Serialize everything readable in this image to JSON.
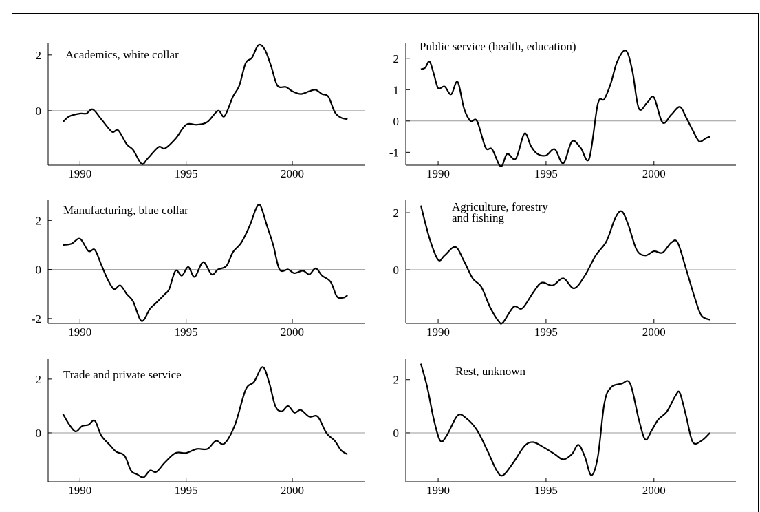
{
  "chart_data": [
    {
      "type": "line",
      "title": "Academics, white collar",
      "xlim": [
        1988.5,
        2003.4
      ],
      "xticks": [
        1990,
        1995,
        2000
      ],
      "ylim": [
        -1.95,
        2.44
      ],
      "yticks": [
        0,
        2
      ],
      "zero_line": true,
      "series": [
        {
          "color": "#000000",
          "x": [
            1989.2,
            1989.5,
            1990,
            1990.3,
            1990.6,
            1991,
            1991.5,
            1991.8,
            1992.2,
            1992.5,
            1992.9,
            1993.2,
            1993.7,
            1994,
            1994.5,
            1995,
            1995.5,
            1996,
            1996.5,
            1996.8,
            1997.2,
            1997.5,
            1997.8,
            1998.1,
            1998.4,
            1998.7,
            1999,
            1999.3,
            1999.7,
            2000,
            2000.4,
            2000.8,
            2001.1,
            2001.4,
            2001.7,
            2002,
            2002.3,
            2002.6
          ],
          "values": [
            -0.4,
            -0.2,
            -0.1,
            -0.1,
            0.05,
            -0.3,
            -0.75,
            -0.7,
            -1.2,
            -1.4,
            -1.9,
            -1.7,
            -1.3,
            -1.35,
            -1.0,
            -0.5,
            -0.5,
            -0.4,
            0.0,
            -0.2,
            0.5,
            0.9,
            1.7,
            1.9,
            2.35,
            2.2,
            1.6,
            0.9,
            0.85,
            0.7,
            0.6,
            0.7,
            0.75,
            0.6,
            0.5,
            -0.05,
            -0.25,
            -0.3
          ]
        }
      ]
    },
    {
      "type": "line",
      "title": "Public service (health, education)",
      "xlim": [
        1988.5,
        2003.8
      ],
      "xticks": [
        1990,
        1995,
        2000
      ],
      "ylim": [
        -1.41,
        2.5
      ],
      "yticks": [
        -1,
        0,
        1,
        2
      ],
      "zero_line": true,
      "series": [
        {
          "color": "#000000",
          "x": [
            1989.2,
            1989.4,
            1989.6,
            1989.8,
            1990,
            1990.3,
            1990.6,
            1990.9,
            1991.2,
            1991.5,
            1991.8,
            1992.2,
            1992.5,
            1992.9,
            1993.2,
            1993.6,
            1994,
            1994.3,
            1994.6,
            1995,
            1995.4,
            1995.8,
            1996.2,
            1996.6,
            1997,
            1997.4,
            1997.7,
            1998,
            1998.3,
            1998.7,
            1999,
            1999.3,
            1999.7,
            2000,
            2000.4,
            2000.8,
            2001.2,
            2001.5,
            2001.8,
            2002.1,
            2002.4,
            2002.6
          ],
          "values": [
            1.65,
            1.7,
            1.9,
            1.5,
            1.05,
            1.1,
            0.85,
            1.25,
            0.4,
            0.0,
            0.0,
            -0.85,
            -0.9,
            -1.45,
            -1.05,
            -1.2,
            -0.4,
            -0.8,
            -1.05,
            -1.1,
            -0.9,
            -1.35,
            -0.65,
            -0.85,
            -1.2,
            0.55,
            0.7,
            1.2,
            1.9,
            2.25,
            1.6,
            0.4,
            0.6,
            0.75,
            -0.05,
            0.2,
            0.45,
            0.1,
            -0.3,
            -0.65,
            -0.55,
            -0.5
          ]
        }
      ]
    },
    {
      "type": "line",
      "title": "Manufacturing, blue collar",
      "xlim": [
        1988.5,
        2003.4
      ],
      "xticks": [
        1990,
        1995,
        2000
      ],
      "ylim": [
        -2.2,
        2.85
      ],
      "yticks": [
        -2,
        0,
        2
      ],
      "zero_line": true,
      "series": [
        {
          "color": "#000000",
          "x": [
            1989.2,
            1989.6,
            1990,
            1990.4,
            1990.7,
            1991,
            1991.3,
            1991.6,
            1991.9,
            1992.2,
            1992.5,
            1992.9,
            1993.3,
            1993.6,
            1994,
            1994.2,
            1994.5,
            1994.8,
            1995.1,
            1995.4,
            1995.8,
            1996.2,
            1996.5,
            1996.9,
            1997.2,
            1997.6,
            1998,
            1998.3,
            1998.5,
            1998.8,
            1999.1,
            1999.4,
            1999.8,
            2000.1,
            2000.5,
            2000.8,
            2001.1,
            2001.4,
            2001.8,
            2002.1,
            2002.4,
            2002.6
          ],
          "values": [
            1.0,
            1.05,
            1.25,
            0.75,
            0.8,
            0.2,
            -0.4,
            -0.8,
            -0.65,
            -1.0,
            -1.3,
            -2.1,
            -1.6,
            -1.35,
            -1.0,
            -0.8,
            -0.05,
            -0.25,
            0.1,
            -0.3,
            0.3,
            -0.2,
            0.0,
            0.15,
            0.7,
            1.1,
            1.8,
            2.5,
            2.6,
            1.8,
            1.0,
            0.0,
            0.0,
            -0.15,
            -0.05,
            -0.2,
            0.05,
            -0.25,
            -0.5,
            -1.1,
            -1.15,
            -1.05
          ]
        }
      ]
    },
    {
      "type": "line",
      "title": [
        "Agriculture, forestry",
        "and fishing"
      ],
      "xlim": [
        1988.5,
        2003.8
      ],
      "xticks": [
        1990,
        1995,
        2000
      ],
      "ylim": [
        -1.88,
        2.46
      ],
      "yticks": [
        0,
        2
      ],
      "zero_line": true,
      "series": [
        {
          "color": "#000000",
          "x": [
            1989.2,
            1989.6,
            1990,
            1990.3,
            1990.8,
            1991.2,
            1991.6,
            1992,
            1992.4,
            1992.8,
            1993,
            1993.5,
            1993.9,
            1994.4,
            1994.8,
            1995.3,
            1995.8,
            1996.3,
            1996.8,
            1997.3,
            1997.8,
            1998.2,
            1998.5,
            1998.8,
            1999.2,
            1999.6,
            2000,
            2000.4,
            2000.8,
            2001.1,
            2001.5,
            2001.9,
            2002.2,
            2002.6
          ],
          "values": [
            2.25,
            1.1,
            0.35,
            0.5,
            0.8,
            0.3,
            -0.3,
            -0.6,
            -1.3,
            -1.8,
            -1.85,
            -1.3,
            -1.35,
            -0.8,
            -0.45,
            -0.55,
            -0.3,
            -0.65,
            -0.2,
            0.5,
            1.0,
            1.8,
            2.05,
            1.6,
            0.7,
            0.5,
            0.65,
            0.6,
            0.95,
            0.95,
            0.0,
            -1.0,
            -1.6,
            -1.75
          ]
        }
      ]
    },
    {
      "type": "line",
      "title": "Trade and private service",
      "xlim": [
        1988.5,
        2003.4
      ],
      "xticks": [
        1990,
        1995,
        2000
      ],
      "ylim": [
        -1.82,
        2.74
      ],
      "yticks": [
        0,
        2
      ],
      "zero_line": true,
      "series": [
        {
          "color": "#000000",
          "x": [
            1989.2,
            1989.5,
            1989.8,
            1990.1,
            1990.4,
            1990.7,
            1991,
            1991.4,
            1991.7,
            1992.1,
            1992.4,
            1992.7,
            1993,
            1993.3,
            1993.6,
            1994,
            1994.5,
            1995,
            1995.5,
            1996,
            1996.4,
            1996.8,
            1997.3,
            1997.8,
            1998.2,
            1998.6,
            1998.9,
            1999.2,
            1999.5,
            1999.8,
            2000.1,
            2000.4,
            2000.8,
            2001.2,
            2001.6,
            2002,
            2002.3,
            2002.6
          ],
          "values": [
            0.7,
            0.3,
            0.05,
            0.25,
            0.3,
            0.45,
            -0.1,
            -0.45,
            -0.7,
            -0.85,
            -1.4,
            -1.55,
            -1.65,
            -1.4,
            -1.45,
            -1.1,
            -0.75,
            -0.75,
            -0.6,
            -0.6,
            -0.3,
            -0.4,
            0.3,
            1.6,
            1.9,
            2.45,
            1.9,
            1.0,
            0.8,
            1.0,
            0.75,
            0.85,
            0.6,
            0.6,
            0.0,
            -0.3,
            -0.65,
            -0.8
          ]
        }
      ]
    },
    {
      "type": "line",
      "title": "Rest, unknown",
      "xlim": [
        1988.5,
        2003.8
      ],
      "xticks": [
        1990,
        1995,
        2000
      ],
      "ylim": [
        -1.84,
        2.77
      ],
      "yticks": [
        0,
        2
      ],
      "zero_line": true,
      "series": [
        {
          "color": "#000000",
          "x": [
            1989.2,
            1989.5,
            1989.8,
            1990.1,
            1990.4,
            1990.9,
            1991.3,
            1991.8,
            1992.3,
            1992.7,
            1993,
            1993.5,
            1994,
            1994.4,
            1994.9,
            1995.4,
            1995.8,
            1996.2,
            1996.5,
            1996.8,
            1997.1,
            1997.4,
            1997.7,
            1998,
            1998.5,
            1998.9,
            1999.3,
            1999.6,
            1999.9,
            2000.2,
            2000.6,
            2001,
            2001.2,
            2001.5,
            2001.8,
            2002.2,
            2002.6
          ],
          "values": [
            2.6,
            1.7,
            0.5,
            -0.3,
            -0.1,
            0.65,
            0.55,
            0.1,
            -0.7,
            -1.4,
            -1.6,
            -1.1,
            -0.5,
            -0.35,
            -0.55,
            -0.8,
            -1.0,
            -0.8,
            -0.45,
            -0.9,
            -1.6,
            -0.9,
            1.1,
            1.7,
            1.85,
            1.85,
            0.5,
            -0.25,
            0.1,
            0.5,
            0.8,
            1.4,
            1.5,
            0.6,
            -0.35,
            -0.3,
            0.0
          ]
        }
      ]
    }
  ]
}
